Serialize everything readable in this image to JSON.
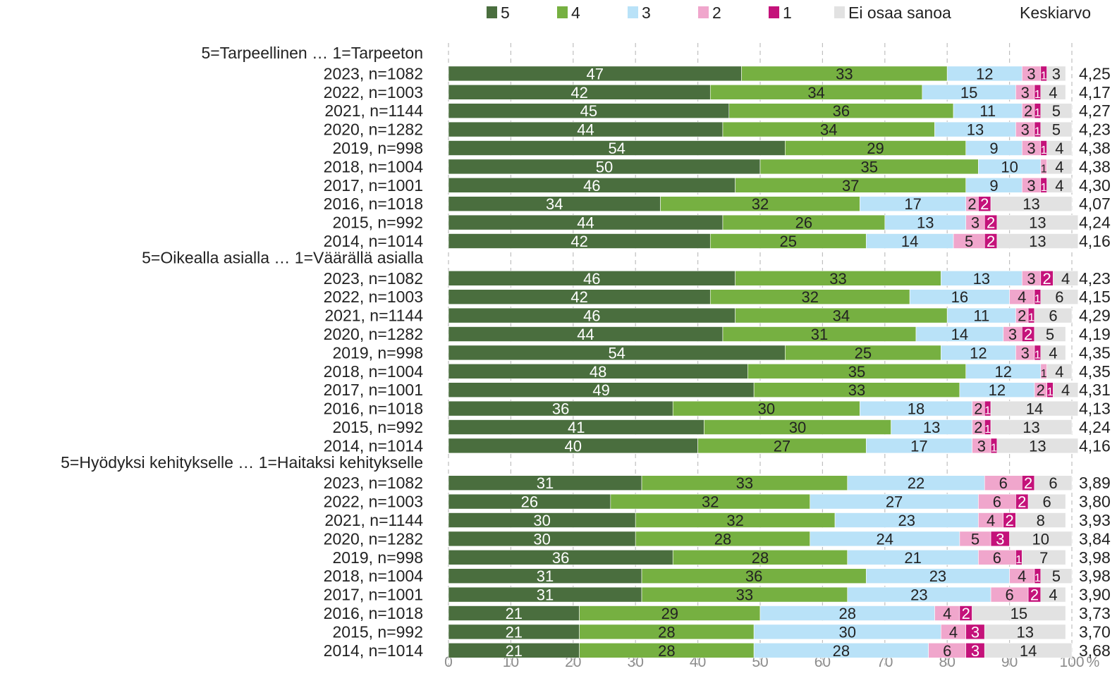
{
  "chart_data": {
    "type": "bar",
    "orientation": "horizontal",
    "stacked": true,
    "xlim": [
      0,
      100
    ],
    "x_ticks": [
      "0",
      "10",
      "20",
      "30",
      "40",
      "50",
      "60",
      "70",
      "80",
      "90",
      "100"
    ],
    "x_unit": "%",
    "grid": "vertical dashed",
    "legend_position": "top",
    "mean_header": "Keskiarvo",
    "series": [
      {
        "name": "5",
        "color": "#4a6e3e",
        "text_color": "#ffffff"
      },
      {
        "name": "4",
        "color": "#76b041",
        "text_color": "#222222"
      },
      {
        "name": "3",
        "color": "#b9e2f8",
        "text_color": "#222222"
      },
      {
        "name": "2",
        "color": "#f0a6cc",
        "text_color": "#222222"
      },
      {
        "name": "1",
        "color": "#c4127a",
        "text_color": "#ffffff"
      },
      {
        "name": "Ei osaa sanoa",
        "color": "#e2e2e2",
        "text_color": "#222222"
      }
    ],
    "groups": [
      {
        "title": "5=Tarpeellinen … 1=Tarpeeton",
        "rows": [
          {
            "label": "2023, n=1082",
            "values": [
              47,
              33,
              12,
              3,
              1,
              3
            ],
            "mean": "4,25"
          },
          {
            "label": "2022, n=1003",
            "values": [
              42,
              34,
              15,
              3,
              1,
              4
            ],
            "mean": "4,17"
          },
          {
            "label": "2021, n=1144",
            "values": [
              45,
              36,
              11,
              2,
              1,
              5
            ],
            "mean": "4,27"
          },
          {
            "label": "2020, n=1282",
            "values": [
              44,
              34,
              13,
              3,
              1,
              5
            ],
            "mean": "4,23"
          },
          {
            "label": "2019, n=998",
            "values": [
              54,
              29,
              9,
              3,
              1,
              4
            ],
            "mean": "4,38"
          },
          {
            "label": "2018, n=1004",
            "values": [
              50,
              35,
              10,
              1,
              0,
              4
            ],
            "mean": "4,38"
          },
          {
            "label": "2017, n=1001",
            "values": [
              46,
              37,
              9,
              3,
              1,
              4
            ],
            "mean": "4,30"
          },
          {
            "label": "2016, n=1018",
            "values": [
              34,
              32,
              17,
              2,
              2,
              13
            ],
            "mean": "4,07"
          },
          {
            "label": "2015, n=992",
            "values": [
              44,
              26,
              13,
              3,
              2,
              13
            ],
            "mean": "4,24"
          },
          {
            "label": "2014, n=1014",
            "values": [
              42,
              25,
              14,
              5,
              2,
              13
            ],
            "mean": "4,16"
          }
        ]
      },
      {
        "title": "5=Oikealla asialla … 1=Väärällä asialla",
        "rows": [
          {
            "label": "2023, n=1082",
            "values": [
              46,
              33,
              13,
              3,
              2,
              4
            ],
            "mean": "4,23"
          },
          {
            "label": "2022, n=1003",
            "values": [
              42,
              32,
              16,
              4,
              1,
              6
            ],
            "mean": "4,15"
          },
          {
            "label": "2021, n=1144",
            "values": [
              46,
              34,
              11,
              2,
              1,
              6
            ],
            "mean": "4,29"
          },
          {
            "label": "2020, n=1282",
            "values": [
              44,
              31,
              14,
              3,
              2,
              5
            ],
            "mean": "4,19"
          },
          {
            "label": "2019, n=998",
            "values": [
              54,
              25,
              12,
              3,
              1,
              4
            ],
            "mean": "4,35"
          },
          {
            "label": "2018, n=1004",
            "values": [
              48,
              35,
              12,
              1,
              0,
              4
            ],
            "mean": "4,35"
          },
          {
            "label": "2017, n=1001",
            "values": [
              49,
              33,
              12,
              2,
              1,
              4
            ],
            "mean": "4,31"
          },
          {
            "label": "2016, n=1018",
            "values": [
              36,
              30,
              18,
              2,
              1,
              14
            ],
            "mean": "4,13"
          },
          {
            "label": "2015, n=992",
            "values": [
              41,
              30,
              13,
              2,
              1,
              13
            ],
            "mean": "4,24"
          },
          {
            "label": "2014, n=1014",
            "values": [
              40,
              27,
              17,
              3,
              1,
              13
            ],
            "mean": "4,16"
          }
        ]
      },
      {
        "title": "5=Hyödyksi kehitykselle … 1=Haitaksi kehitykselle",
        "rows": [
          {
            "label": "2023, n=1082",
            "values": [
              31,
              33,
              22,
              6,
              2,
              6
            ],
            "mean": "3,89"
          },
          {
            "label": "2022, n=1003",
            "values": [
              26,
              32,
              27,
              6,
              2,
              6
            ],
            "mean": "3,80"
          },
          {
            "label": "2021, n=1144",
            "values": [
              30,
              32,
              23,
              4,
              2,
              8
            ],
            "mean": "3,93"
          },
          {
            "label": "2020, n=1282",
            "values": [
              30,
              28,
              24,
              5,
              3,
              10
            ],
            "mean": "3,84"
          },
          {
            "label": "2019, n=998",
            "values": [
              36,
              28,
              21,
              6,
              1,
              7
            ],
            "mean": "3,98"
          },
          {
            "label": "2018, n=1004",
            "values": [
              31,
              36,
              23,
              4,
              1,
              5
            ],
            "mean": "3,98"
          },
          {
            "label": "2017, n=1001",
            "values": [
              31,
              33,
              23,
              6,
              2,
              4
            ],
            "mean": "3,90"
          },
          {
            "label": "2016, n=1018",
            "values": [
              21,
              29,
              28,
              4,
              2,
              15
            ],
            "mean": "3,73"
          },
          {
            "label": "2015, n=992",
            "values": [
              21,
              28,
              30,
              4,
              3,
              13
            ],
            "mean": "3,70"
          },
          {
            "label": "2014, n=1014",
            "values": [
              21,
              28,
              28,
              6,
              3,
              14
            ],
            "mean": "3,68"
          }
        ]
      }
    ]
  }
}
